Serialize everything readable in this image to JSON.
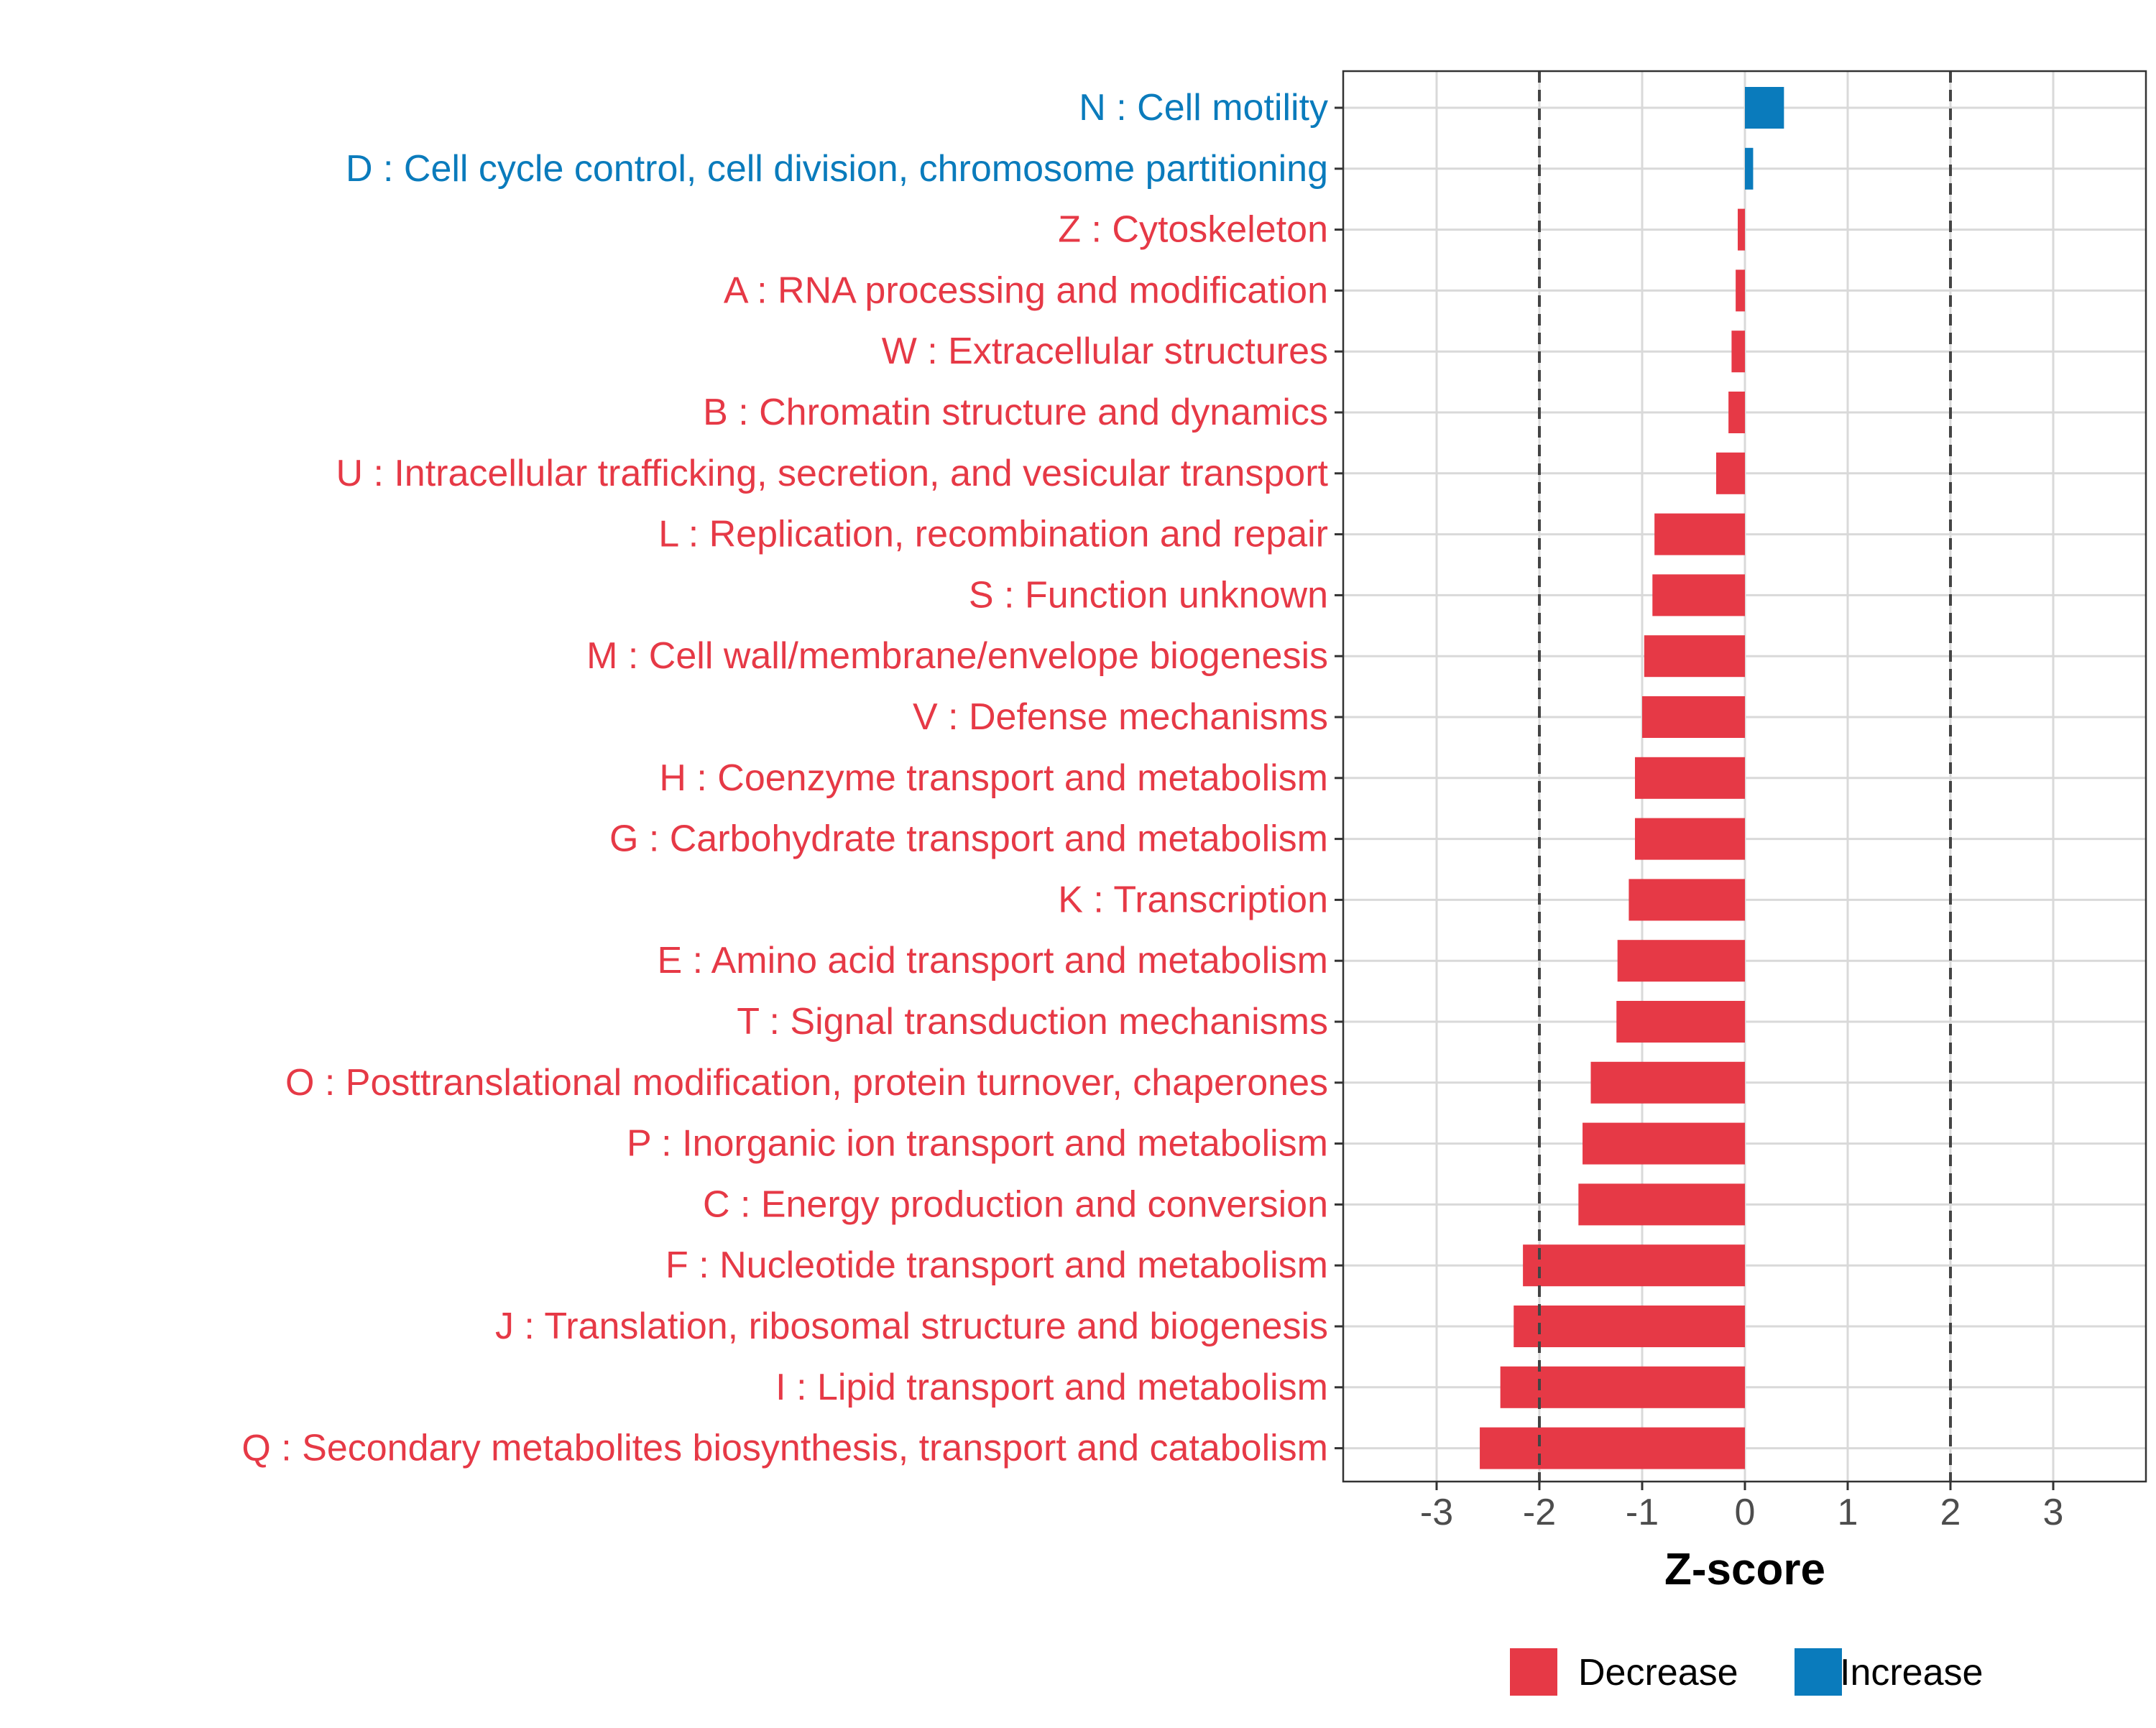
{
  "chart_data": {
    "type": "bar",
    "orientation": "horizontal",
    "title": "",
    "xlabel": "Z-score",
    "ylabel": "",
    "xlim": [
      -4,
      4
    ],
    "x_ticks": [
      "-3",
      "-2",
      "-1",
      "0",
      "1",
      "2",
      "3"
    ],
    "x_tick_values": [
      -3,
      -2,
      -1,
      0,
      1,
      2,
      3
    ],
    "reference_lines": [
      -2,
      2
    ],
    "grid": true,
    "legend_position": "bottom",
    "colors": {
      "Decrease": "#E63946",
      "Increase": "#0A7BBC"
    },
    "legend": [
      {
        "label": "Decrease",
        "color": "#E63946"
      },
      {
        "label": "Increase",
        "color": "#0A7BBC"
      }
    ],
    "categories": [
      "N : Cell motility",
      "D : Cell cycle control, cell division, chromosome partitioning",
      "Z : Cytoskeleton",
      "A : RNA processing and modification",
      "W : Extracellular structures",
      "B : Chromatin structure and dynamics",
      "U : Intracellular trafficking, secretion, and vesicular transport",
      "L : Replication, recombination and repair",
      "S : Function unknown",
      "M : Cell wall/membrane/envelope biogenesis",
      "V : Defense mechanisms",
      "H : Coenzyme transport and metabolism",
      "G : Carbohydrate transport and metabolism",
      "K : Transcription",
      "E : Amino acid transport and metabolism",
      "T : Signal transduction mechanisms",
      "O : Posttranslational modification, protein turnover, chaperones",
      "P : Inorganic ion transport and metabolism",
      "C : Energy production and conversion",
      "F : Nucleotide transport and metabolism",
      "J : Translation, ribosomal structure and biogenesis",
      "I : Lipid transport and metabolism",
      "Q : Secondary metabolites biosynthesis, transport and catabolism"
    ],
    "values": [
      0.38,
      0.08,
      -0.07,
      -0.09,
      -0.13,
      -0.16,
      -0.28,
      -0.88,
      -0.9,
      -0.98,
      -1.0,
      -1.07,
      -1.07,
      -1.13,
      -1.24,
      -1.25,
      -1.5,
      -1.58,
      -1.62,
      -2.16,
      -2.25,
      -2.38,
      -2.58
    ],
    "direction": [
      "Increase",
      "Increase",
      "Decrease",
      "Decrease",
      "Decrease",
      "Decrease",
      "Decrease",
      "Decrease",
      "Decrease",
      "Decrease",
      "Decrease",
      "Decrease",
      "Decrease",
      "Decrease",
      "Decrease",
      "Decrease",
      "Decrease",
      "Decrease",
      "Decrease",
      "Decrease",
      "Decrease",
      "Decrease",
      "Decrease"
    ]
  }
}
